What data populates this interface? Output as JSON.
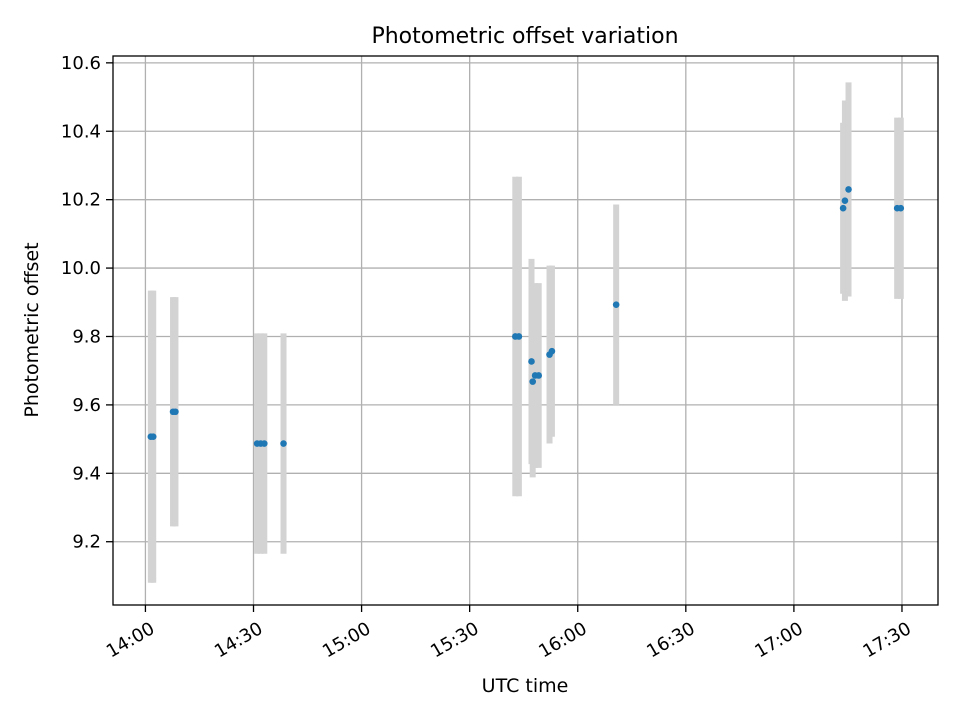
{
  "chart_data": {
    "type": "scatter",
    "title": "Photometric offset variation",
    "xlabel": "UTC time",
    "ylabel": "Photometric offset",
    "x_axis": {
      "type": "time",
      "range": [
        "13:51",
        "17:40"
      ],
      "ticks": [
        "14:00",
        "14:30",
        "15:00",
        "15:30",
        "16:00",
        "16:30",
        "17:00",
        "17:30"
      ]
    },
    "y_axis": {
      "range": [
        9.015,
        10.62
      ],
      "ticks": [
        "9.2",
        "9.4",
        "9.6",
        "9.8",
        "10.0",
        "10.2",
        "10.4",
        "10.6"
      ]
    },
    "grid": true,
    "colors": {
      "point": "#1f77b4",
      "errorbar": "#d3d3d3",
      "grid": "#b0b0b0"
    },
    "points": [
      {
        "time": "14:01:30",
        "value": 9.507,
        "err": 0.427
      },
      {
        "time": "14:02:10",
        "value": 9.507,
        "err": 0.427
      },
      {
        "time": "14:07:40",
        "value": 9.58,
        "err": 0.335
      },
      {
        "time": "14:08:20",
        "value": 9.58,
        "err": 0.335
      },
      {
        "time": "14:31:00",
        "value": 9.487,
        "err": 0.322
      },
      {
        "time": "14:32:00",
        "value": 9.487,
        "err": 0.322
      },
      {
        "time": "14:33:00",
        "value": 9.487,
        "err": 0.322
      },
      {
        "time": "14:38:20",
        "value": 9.487,
        "err": 0.322
      },
      {
        "time": "15:42:40",
        "value": 9.8,
        "err": 0.467
      },
      {
        "time": "15:43:40",
        "value": 9.8,
        "err": 0.467
      },
      {
        "time": "15:47:10",
        "value": 9.727,
        "err": 0.3
      },
      {
        "time": "15:47:30",
        "value": 9.668,
        "err": 0.28
      },
      {
        "time": "15:48:10",
        "value": 9.686,
        "err": 0.27
      },
      {
        "time": "15:49:10",
        "value": 9.686,
        "err": 0.27
      },
      {
        "time": "15:52:10",
        "value": 9.747,
        "err": 0.26
      },
      {
        "time": "15:52:50",
        "value": 9.757,
        "err": 0.25
      },
      {
        "time": "16:10:40",
        "value": 9.893,
        "err": 0.293
      },
      {
        "time": "17:13:40",
        "value": 10.175,
        "err": 0.25
      },
      {
        "time": "17:14:10",
        "value": 10.197,
        "err": 0.293
      },
      {
        "time": "17:15:10",
        "value": 10.23,
        "err": 0.313
      },
      {
        "time": "17:28:40",
        "value": 10.175,
        "err": 0.265
      },
      {
        "time": "17:29:40",
        "value": 10.175,
        "err": 0.265
      }
    ]
  }
}
